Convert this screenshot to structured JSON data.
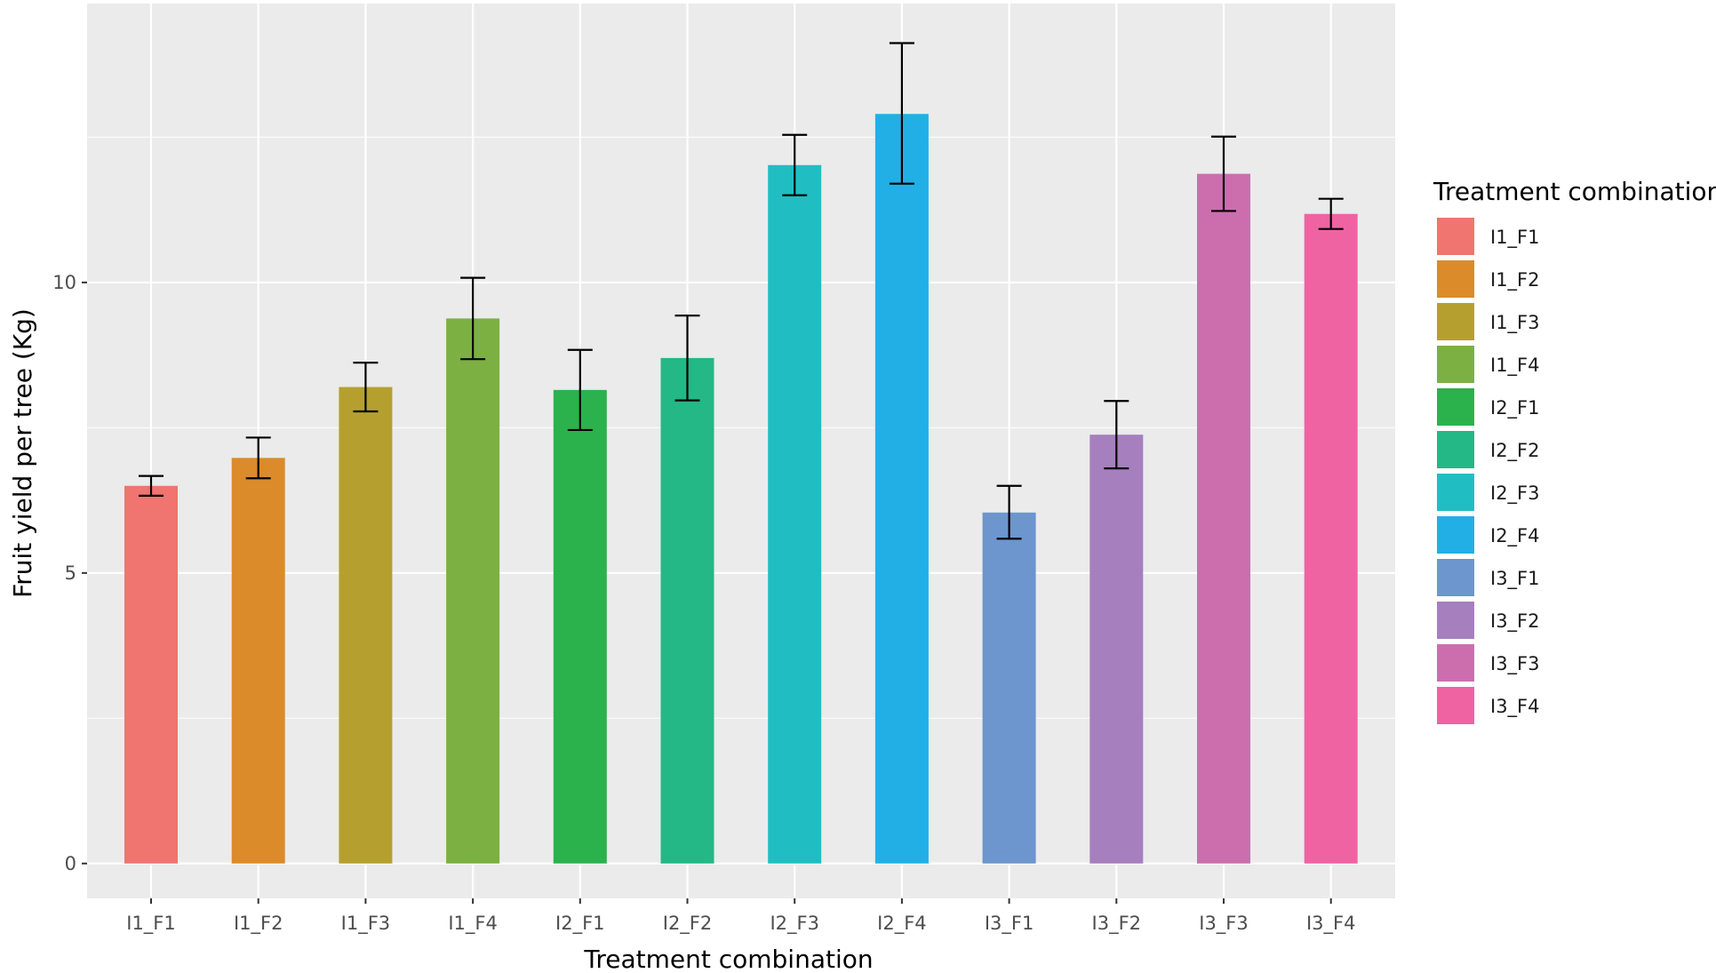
{
  "chart_data": {
    "type": "bar",
    "title": "",
    "xlabel": "Treatment combination",
    "ylabel": "Fruit yield per tree (Kg)",
    "ylim": [
      -0.6,
      14.8
    ],
    "yticks": [
      0,
      5,
      10
    ],
    "grid": true,
    "legend_title": "Treatment combination",
    "legend_position": "right",
    "categories": [
      "I1_F1",
      "I1_F2",
      "I1_F3",
      "I1_F4",
      "I2_F1",
      "I2_F2",
      "I2_F3",
      "I2_F4",
      "I3_F1",
      "I3_F2",
      "I3_F3",
      "I3_F4"
    ],
    "values": [
      6.5,
      6.98,
      8.2,
      9.38,
      8.15,
      8.7,
      12.02,
      12.9,
      6.04,
      7.38,
      11.87,
      11.18
    ],
    "error_low": [
      6.33,
      6.63,
      7.78,
      8.68,
      7.46,
      7.97,
      11.5,
      11.7,
      5.59,
      6.8,
      11.23,
      10.92
    ],
    "error_high": [
      6.67,
      7.33,
      8.62,
      10.08,
      8.84,
      9.43,
      12.54,
      14.12,
      6.5,
      7.96,
      12.51,
      11.44
    ],
    "colors": [
      "#f07470",
      "#db8b29",
      "#b5a02f",
      "#7cb043",
      "#2bb24c",
      "#23b885",
      "#20bec2",
      "#22afe6",
      "#6d95ce",
      "#a67fbe",
      "#cc6eae",
      "#ef63a3"
    ]
  }
}
